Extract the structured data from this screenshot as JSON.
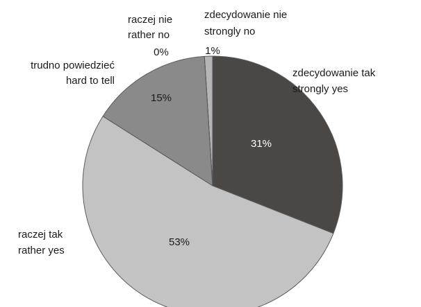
{
  "chart_data": {
    "type": "pie",
    "title": "",
    "legend": "none",
    "slices": [
      {
        "label": "zdecydowanie tak",
        "label_en": "strongly yes",
        "value": 31,
        "value_label": "31%",
        "color": "#4a4745"
      },
      {
        "label": "raczej tak",
        "label_en": "rather yes",
        "value": 53,
        "value_label": "53%",
        "color": "#c3c3c3"
      },
      {
        "label": "trudno powiedzieć",
        "label_en": "hard to tell",
        "value": 15,
        "value_label": "15%",
        "color": "#8a8a8a"
      },
      {
        "label": "raczej nie",
        "label_en": "rather no",
        "value": 0,
        "value_label": "0%",
        "color": "#5e5e5e"
      },
      {
        "label": "zdecydowanie nie",
        "label_en": "strongly no",
        "value": 1,
        "value_label": "1%",
        "color": "#b5b5b5"
      }
    ]
  }
}
